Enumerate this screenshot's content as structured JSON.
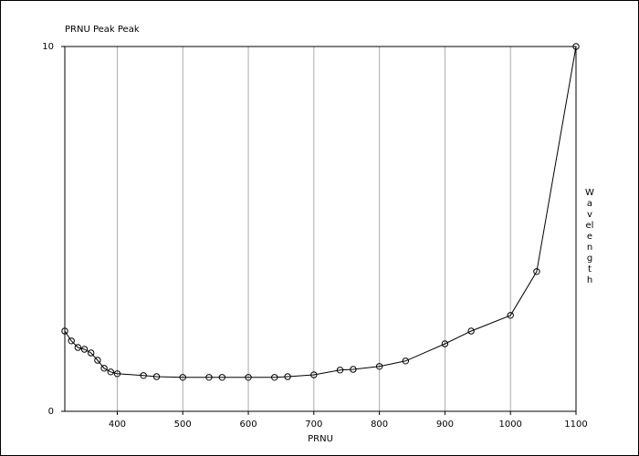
{
  "chart_data": {
    "type": "line",
    "title": "PRNU Peak Peak",
    "x_label": "PRNU",
    "y_label": "Wavelength",
    "x": [
      320,
      330,
      340,
      350,
      360,
      370,
      380,
      390,
      400,
      440,
      460,
      500,
      540,
      560,
      600,
      640,
      660,
      700,
      740,
      760,
      800,
      840,
      900,
      940,
      1000,
      1040,
      1100
    ],
    "series": [
      {
        "name": "PRNU Peak Peak",
        "color": "#000000",
        "values": [
          2.2,
          1.93,
          1.75,
          1.7,
          1.6,
          1.4,
          1.18,
          1.08,
          1.03,
          0.98,
          0.95,
          0.93,
          0.93,
          0.93,
          0.93,
          0.93,
          0.95,
          1.0,
          1.13,
          1.15,
          1.23,
          1.38,
          1.85,
          2.2,
          2.63,
          3.83,
          10
        ]
      }
    ],
    "xlim": [
      320,
      1100
    ],
    "ylim": [
      0,
      10
    ],
    "xticks": [
      400,
      500,
      600,
      700,
      800,
      900,
      1000,
      1100
    ],
    "yticks": [
      0,
      10
    ],
    "grid": true
  }
}
